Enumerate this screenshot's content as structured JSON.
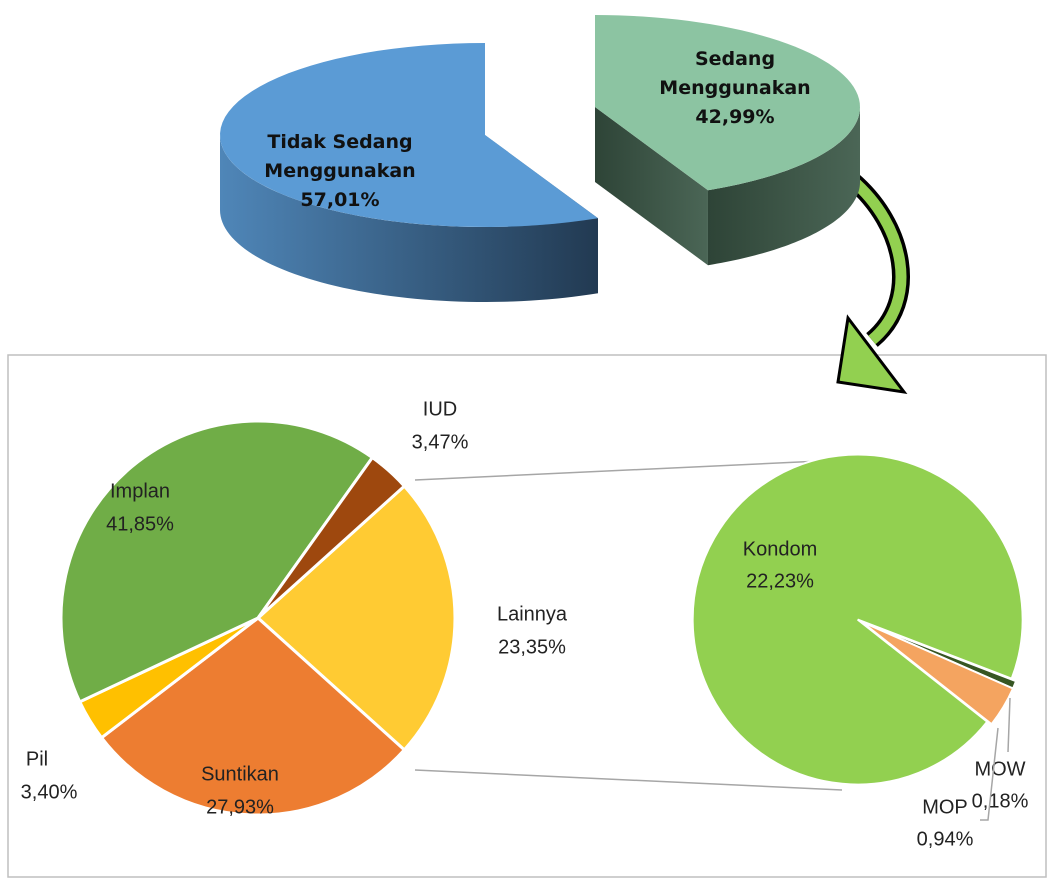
{
  "chart_data": [
    {
      "type": "pie3d",
      "categories": [
        "Sedang Menggunakan",
        "Tidak Sedang Menggunakan"
      ],
      "values": [
        42.99,
        57.01
      ],
      "value_labels": [
        "42,99%",
        "57,01%"
      ],
      "colors": [
        "#8cc4a2",
        "#5b9bd5"
      ]
    },
    {
      "type": "pie",
      "categories": [
        "Lainnya",
        "Suntikan",
        "Pil",
        "Implan",
        "IUD"
      ],
      "values": [
        23.35,
        27.93,
        3.4,
        41.85,
        3.47
      ],
      "value_labels": [
        "23,35%",
        "27,93%",
        "3,40%",
        "41,85%",
        "3,47%"
      ],
      "colors": [
        "#ffcb33",
        "#ed7d31",
        "#ffc000",
        "#70ad47",
        "#9e480e"
      ],
      "secondary": {
        "categories": [
          "MOW",
          "MOP",
          "Kondom"
        ],
        "values": [
          0.18,
          0.94,
          22.23
        ],
        "value_labels": [
          "0,18%",
          "0,94%",
          "22,23%"
        ],
        "colors": [
          "#375623",
          "#f4a460",
          "#92d050"
        ]
      }
    }
  ]
}
